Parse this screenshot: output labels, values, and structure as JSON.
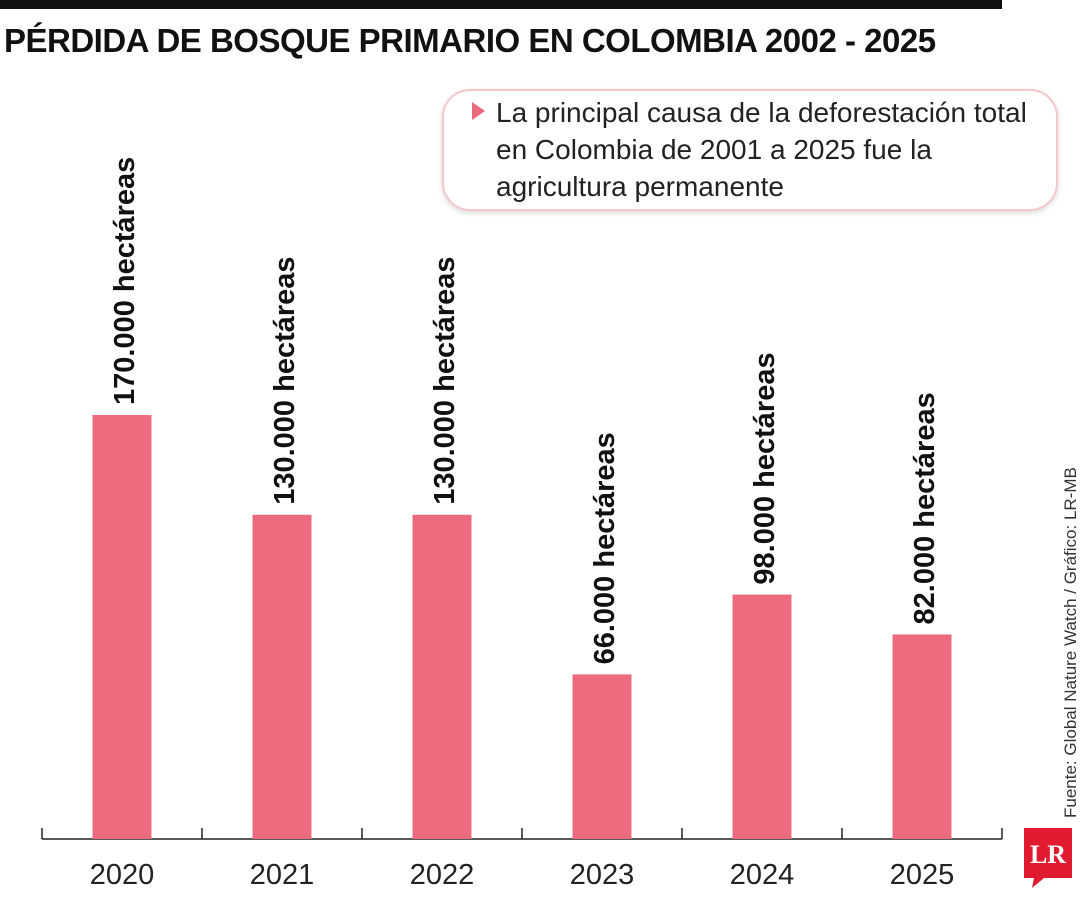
{
  "title": "PÉRDIDA DE BOSQUE PRIMARIO EN COLOMBIA 2002 - 2025",
  "callout": "La principal causa de la deforestación total en Colombia de 2001 a 2025 fue la agricultura permanente",
  "source": "Fuente: Global Nature Watch / Gráfico: LR-MB",
  "logo_text": "LR",
  "colors": {
    "bar": "#ec6b7f",
    "axis": "#222222",
    "accent": "#e96b7d",
    "logo": "#e01a2f"
  },
  "chart_data": {
    "type": "bar",
    "title": "PÉRDIDA DE BOSQUE PRIMARIO EN COLOMBIA 2002 - 2025",
    "xlabel": "",
    "ylabel": "",
    "categories": [
      "2020",
      "2021",
      "2022",
      "2023",
      "2024",
      "2025"
    ],
    "values": [
      170000,
      130000,
      130000,
      66000,
      98000,
      82000
    ],
    "data_labels": [
      "170.000 hectáreas",
      "130.000 hectáreas",
      "130.000 hectáreas",
      "66.000 hectáreas",
      "98.000 hectáreas",
      "82.000 hectáreas"
    ],
    "ylim": [
      0,
      170000
    ],
    "grid": false,
    "legend": "none"
  }
}
